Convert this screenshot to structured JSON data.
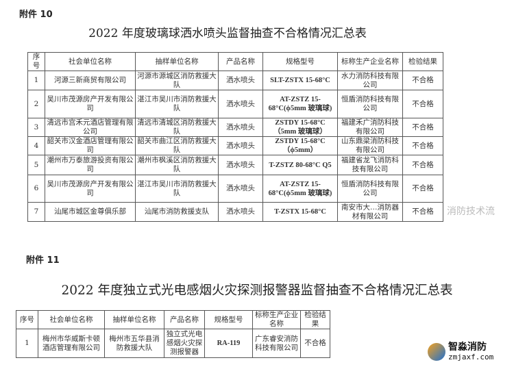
{
  "doc1": {
    "attachment": "附件 10",
    "title": "2022 年度玻璃球洒水喷头监督抽查不合格情况汇总表",
    "headers": [
      "序号",
      "社会单位名称",
      "抽样单位名称",
      "产品名称",
      "规格型号",
      "标称生产企业名称",
      "检验结果"
    ],
    "rows": [
      [
        "1",
        "河源三新商贸有限公司",
        "河源市源城区消防救援大队",
        "洒水喷头",
        "SLT-ZSTX 15-68°C",
        "水力消防科技有限公司",
        "不合格"
      ],
      [
        "2",
        "吴川市茂源房产开发有限公司",
        "湛江市吴川市消防救援大队",
        "洒水喷头",
        "AT-ZSTZ 15-68°C(ϕ5mm 玻璃球)",
        "恒盾消防科技有限公司",
        "不合格"
      ],
      [
        "3",
        "清远市宫禾元酒店管理有限公司",
        "清远市清城区消防救援大队",
        "洒水喷头",
        "ZSTDY 15-68°C（5mm 玻璃球）",
        "福建禾广消防科技有限公司",
        "不合格"
      ],
      [
        "4",
        "韶关市汉金酒店管理有限公司",
        "韶关市曲江区消防救援大队",
        "洒水喷头",
        "ZSTDY 15-68°C（ϕ5mm）",
        "山东鼎梁消防科技有限公司",
        "不合格"
      ],
      [
        "5",
        "潮州市万泰旅游投资有限公司",
        "潮州市枫溪区消防救援大队",
        "洒水喷头",
        "T-ZSTZ 80-68°C Q5",
        "福建省龙飞消防科技有限公司",
        "不合格"
      ],
      [
        "6",
        "吴川市茂源房产开发有限公司",
        "湛江市吴川市消防救援大队",
        "洒水喷头",
        "AT-ZSTZ 15-68°C(ϕ5mm 玻璃球)",
        "恒盾消防科技有限公司",
        "不合格"
      ],
      [
        "7",
        "汕尾市城区金尊俱乐部",
        "汕尾市消防救援支队",
        "洒水喷头",
        "T-ZSTX 15-68°C",
        "南安市大…消防器材有限公司",
        "不合格"
      ]
    ]
  },
  "watermark": "消防技术流",
  "doc2": {
    "attachment": "附件 11",
    "title": "2022 年度独立式光电感烟火灾探测报警器监督抽查不合格情况汇总表",
    "headers": [
      "序号",
      "社会单位名称",
      "抽样单位名称",
      "产品名称",
      "规格型号",
      "标称生产企业名称",
      "检验结果"
    ],
    "rows": [
      [
        "1",
        "梅州市华威斯卡顿酒店管理有限公司",
        "梅州市五华县消防救援大队",
        "独立式光电感烟火灾探测报警器",
        "RA-119",
        "广东睿安消防科技有限公司",
        "不合格"
      ]
    ]
  },
  "logo": {
    "name": "智淼消防",
    "url": "zmjaxf.com"
  }
}
